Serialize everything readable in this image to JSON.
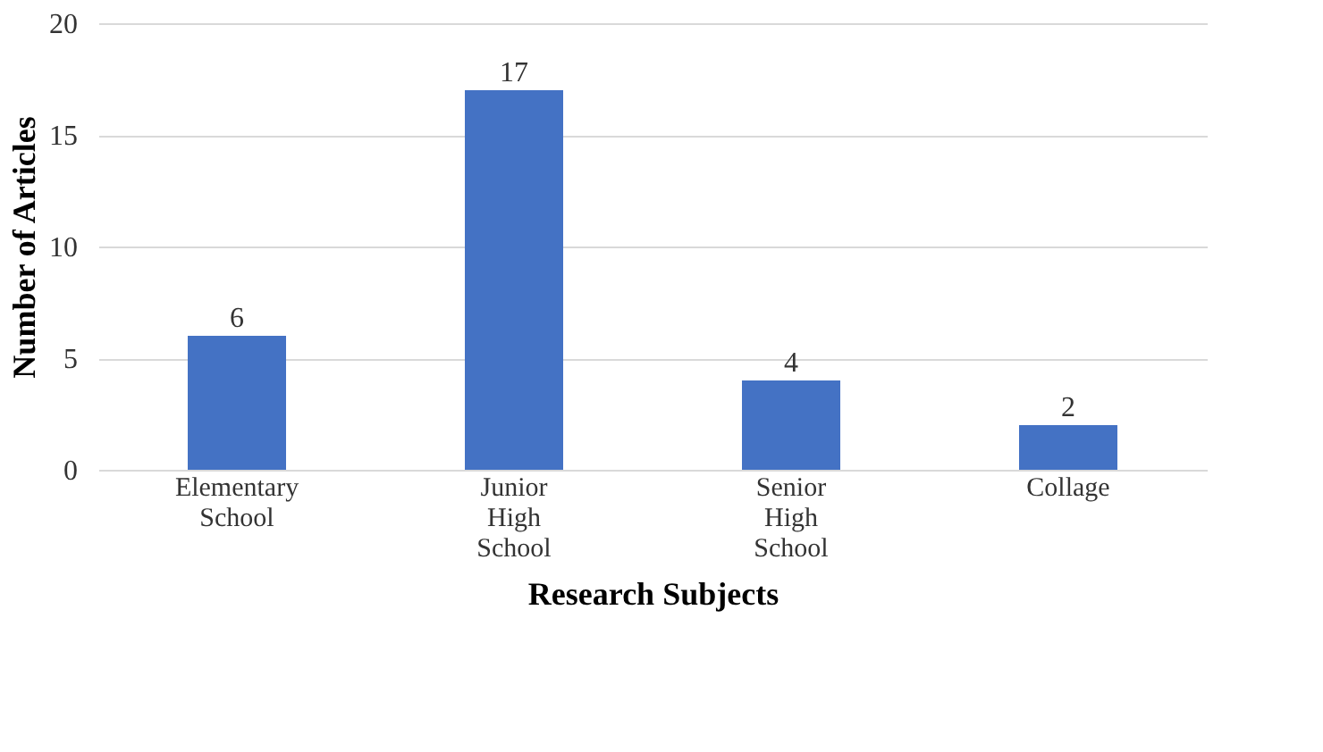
{
  "chart_data": {
    "type": "bar",
    "xlabel": "Research Subjects",
    "ylabel": "Number  of Articles",
    "categories": [
      "Elementary School",
      "Junior High School",
      "Senior High School",
      "Collage"
    ],
    "values": [
      6,
      17,
      4,
      2
    ],
    "color": "#4472c4",
    "ylim": [
      0,
      20
    ],
    "yticks": [
      0,
      5,
      10,
      15,
      20
    ],
    "grid": "y",
    "data_labels": true
  }
}
